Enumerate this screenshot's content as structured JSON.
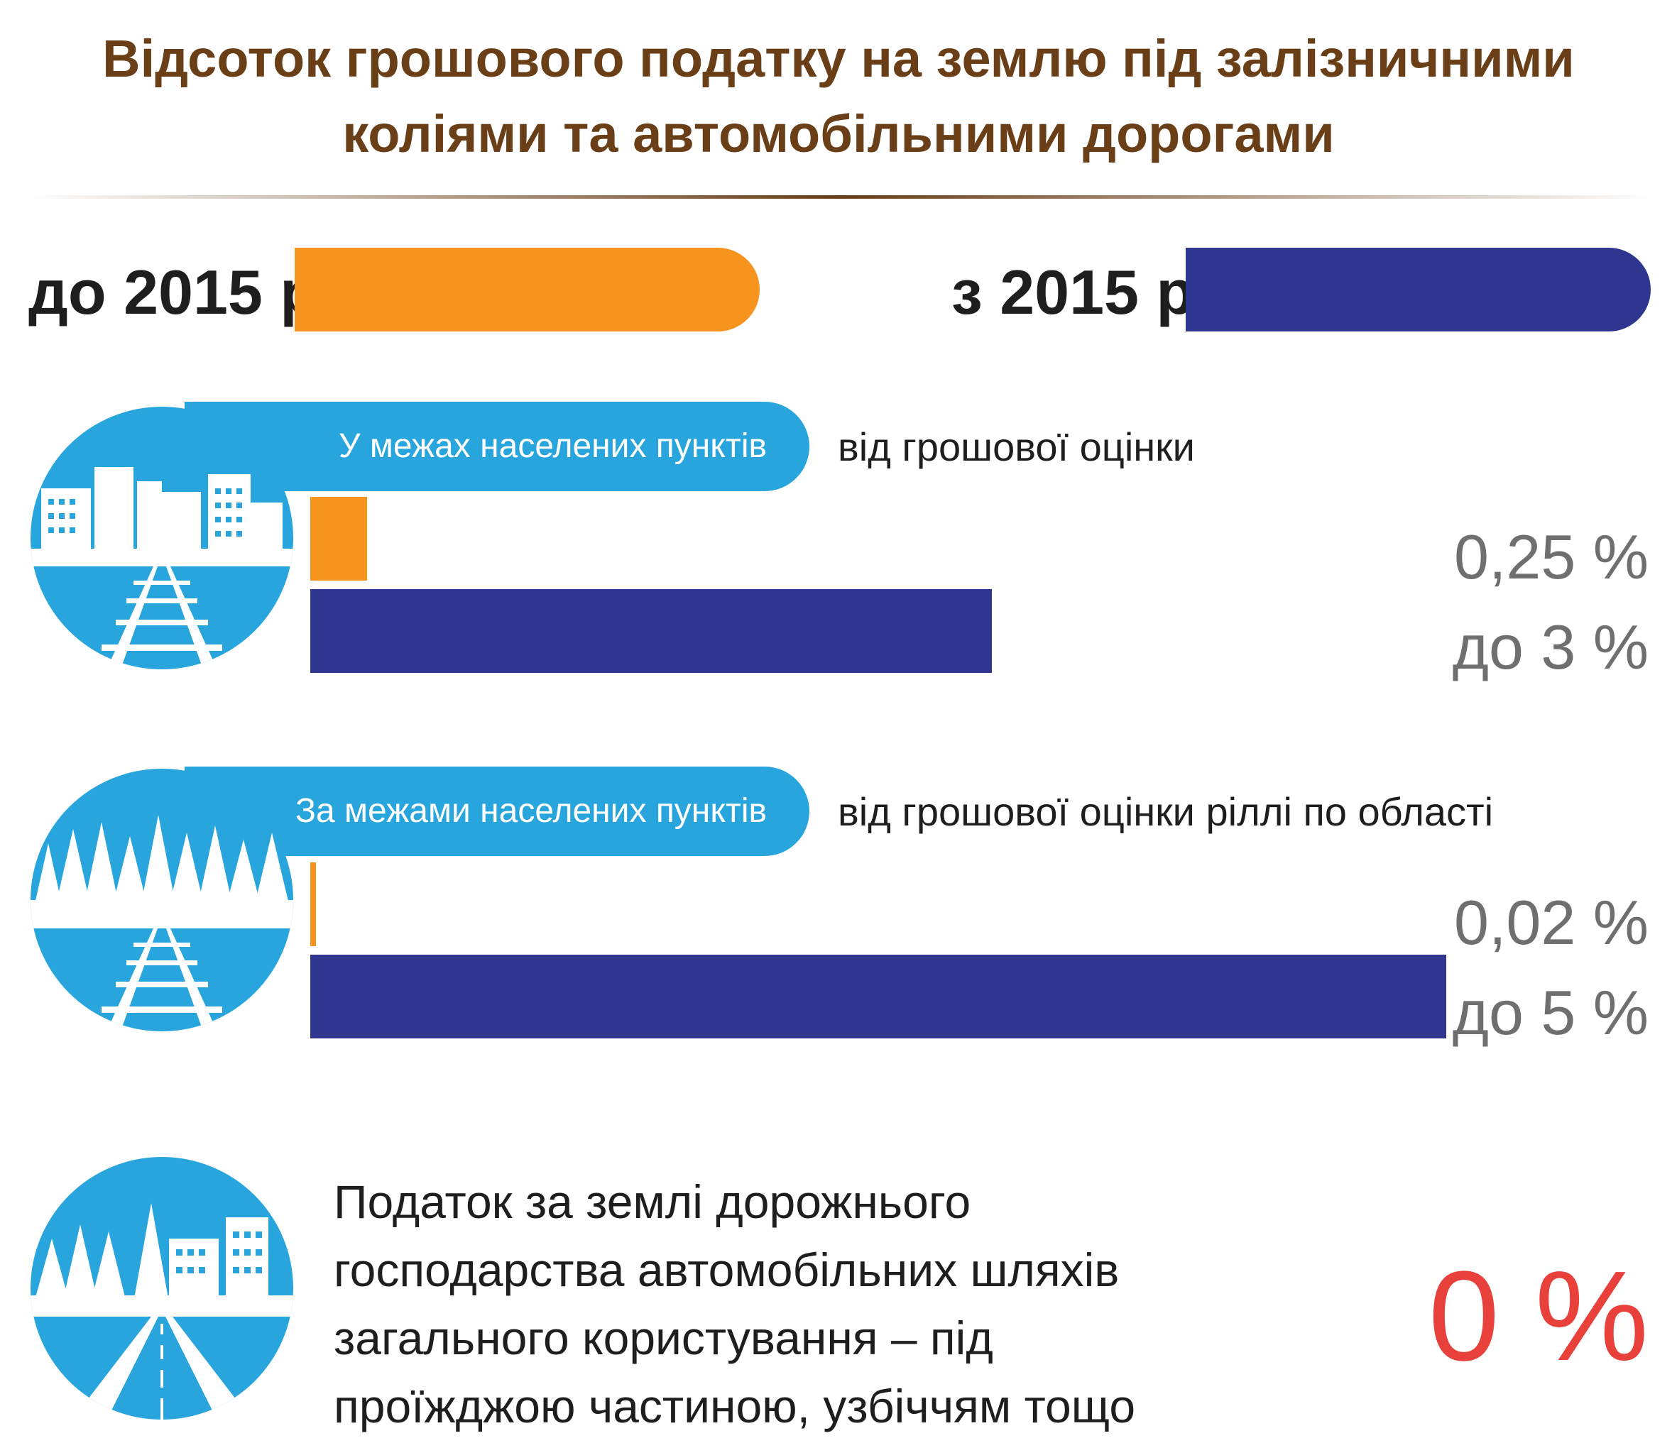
{
  "title": {
    "line1": "Відсоток грошового податку на землю під залізничними",
    "line2": "коліями та автомобільними дорогами"
  },
  "colors": {
    "title": "#6a3f18",
    "before_2015": "#f7941d",
    "from_2015": "#2e3690",
    "pill": "#29a5dd",
    "percent_text": "#6f6f6f",
    "zero_text": "#e8403a"
  },
  "legend": {
    "before_label": "до 2015 р.",
    "after_label": "з 2015 р."
  },
  "sections": [
    {
      "category": "У межах населених пунктів",
      "basis": "від грошової оцінки",
      "icon": "city-railway-icon",
      "before_text": "0,25 %",
      "after_text": "до 3 %"
    },
    {
      "category": "За межами населених пунктів",
      "basis": "від грошової оцінки ріллі по області",
      "icon": "forest-railway-icon",
      "before_text": "0,02 %",
      "after_text": "до 5 %"
    }
  ],
  "chart_data": {
    "type": "bar",
    "categories": [
      "У межах населених пунктів",
      "За межами населених пунктів"
    ],
    "series": [
      {
        "name": "до 2015 р.",
        "values": [
          0.25,
          0.02
        ]
      },
      {
        "name": "з 2015 р.",
        "values": [
          3,
          5
        ]
      }
    ],
    "unit": "%",
    "xlim": [
      0,
      5
    ]
  },
  "bottom": {
    "icon": "road-forest-city-icon",
    "text_lines": [
      "Податок за землі дорожнього",
      "господарства автомобільних шляхів",
      "загального користування – під",
      "проїжджою частиною, узбіччям тощо"
    ],
    "value_text": "0 %"
  }
}
